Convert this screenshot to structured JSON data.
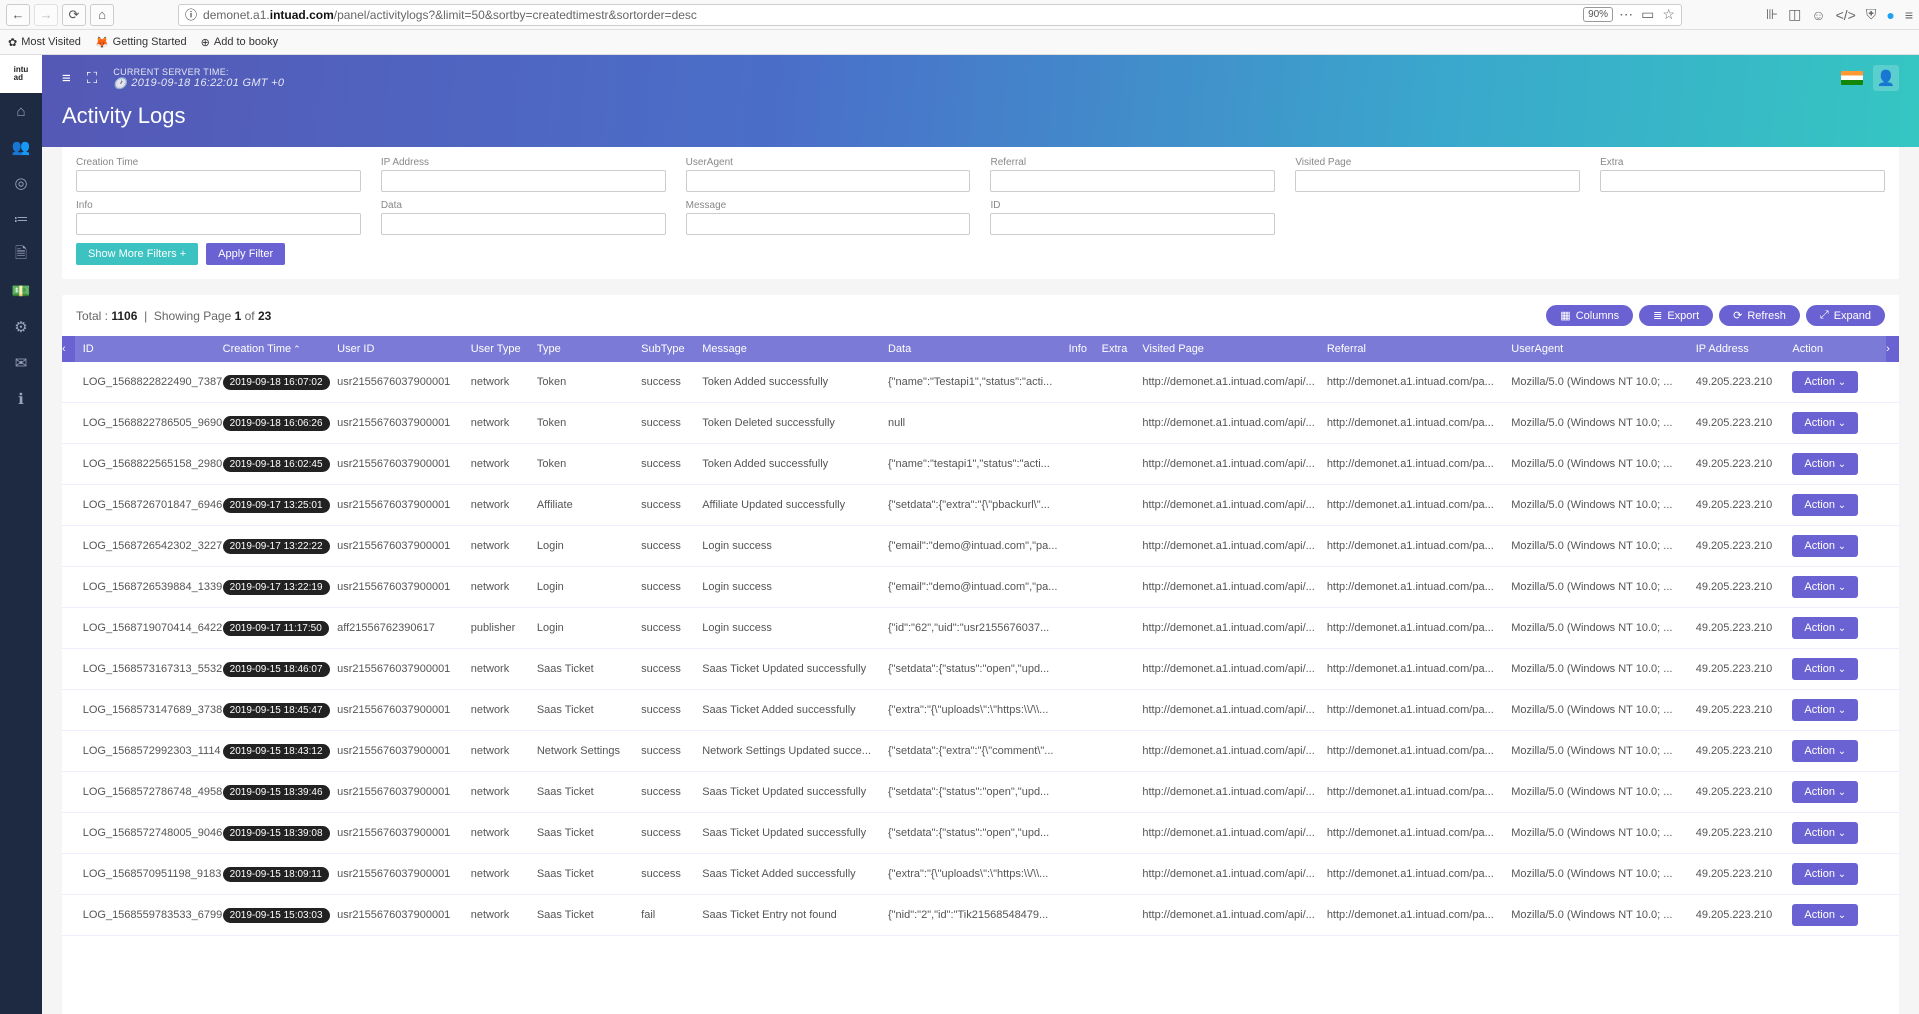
{
  "browser": {
    "url_prefix": "demonet.a1.",
    "url_host": "intuad.com",
    "url_path": "/panel/activitylogs?&limit=50&sortby=createdtimestr&sortorder=desc",
    "zoom": "90%",
    "bookmarks": [
      "Most Visited",
      "Getting Started",
      "Add to booky"
    ]
  },
  "header": {
    "server_time_label": "CURRENT SERVER TIME:",
    "server_time_value": "2019-09-18 16:22:01 GMT +0",
    "page_title": "Activity Logs"
  },
  "filters": {
    "row1": [
      "Creation Time",
      "IP Address",
      "UserAgent",
      "Referral",
      "Visited Page",
      "Extra"
    ],
    "row2": [
      "Info",
      "Data",
      "Message",
      "ID",
      "",
      ""
    ],
    "show_more": "Show More Filters +",
    "apply": "Apply Filter"
  },
  "table": {
    "total_label": "Total :",
    "total": "1106",
    "page_label_pre": "Showing Page ",
    "page_current": "1",
    "page_of": " of ",
    "page_total": "23",
    "btn_columns": "Columns",
    "btn_export": "Export",
    "btn_refresh": "Refresh",
    "btn_expand": "Expand",
    "action_label": "Action",
    "columns": [
      "ID",
      "Creation Time",
      "User ID",
      "User Type",
      "Type",
      "SubType",
      "Message",
      "Data",
      "Info",
      "Extra",
      "Visited Page",
      "Referral",
      "UserAgent",
      "IP Address",
      "Action"
    ],
    "rows": [
      {
        "id": "LOG_1568822822490_7387",
        "ct": "2019-09-18 16:07:02",
        "uid": "usr2155676037900001",
        "ut": "network",
        "type": "Token",
        "sub": "success",
        "msg": "Token Added successfully",
        "data": "{\"name\":\"Testapi1\",\"status\":\"acti...",
        "vp": "http://demonet.a1.intuad.com/api/...",
        "ref": "http://demonet.a1.intuad.com/pa...",
        "ua": "Mozilla/5.0 (Windows NT 10.0; ...",
        "ip": "49.205.223.210"
      },
      {
        "id": "LOG_1568822786505_9690",
        "ct": "2019-09-18 16:06:26",
        "uid": "usr2155676037900001",
        "ut": "network",
        "type": "Token",
        "sub": "success",
        "msg": "Token Deleted successfully",
        "data": "null",
        "vp": "http://demonet.a1.intuad.com/api/...",
        "ref": "http://demonet.a1.intuad.com/pa...",
        "ua": "Mozilla/5.0 (Windows NT 10.0; ...",
        "ip": "49.205.223.210"
      },
      {
        "id": "LOG_1568822565158_2980",
        "ct": "2019-09-18 16:02:45",
        "uid": "usr2155676037900001",
        "ut": "network",
        "type": "Token",
        "sub": "success",
        "msg": "Token Added successfully",
        "data": "{\"name\":\"testapi1\",\"status\":\"acti...",
        "vp": "http://demonet.a1.intuad.com/api/...",
        "ref": "http://demonet.a1.intuad.com/pa...",
        "ua": "Mozilla/5.0 (Windows NT 10.0; ...",
        "ip": "49.205.223.210"
      },
      {
        "id": "LOG_1568726701847_6946",
        "ct": "2019-09-17 13:25:01",
        "uid": "usr2155676037900001",
        "ut": "network",
        "type": "Affiliate",
        "sub": "success",
        "msg": "Affiliate Updated successfully",
        "data": "{\"setdata\":{\"extra\":\"{\\\"pbackurl\\\"...",
        "vp": "http://demonet.a1.intuad.com/api/...",
        "ref": "http://demonet.a1.intuad.com/pa...",
        "ua": "Mozilla/5.0 (Windows NT 10.0; ...",
        "ip": "49.205.223.210"
      },
      {
        "id": "LOG_1568726542302_3227",
        "ct": "2019-09-17 13:22:22",
        "uid": "usr2155676037900001",
        "ut": "network",
        "type": "Login",
        "sub": "success",
        "msg": "Login success",
        "data": "{\"email\":\"demo@intuad.com\",\"pa...",
        "vp": "http://demonet.a1.intuad.com/api/...",
        "ref": "http://demonet.a1.intuad.com/pa...",
        "ua": "Mozilla/5.0 (Windows NT 10.0; ...",
        "ip": "49.205.223.210"
      },
      {
        "id": "LOG_1568726539884_1339",
        "ct": "2019-09-17 13:22:19",
        "uid": "usr2155676037900001",
        "ut": "network",
        "type": "Login",
        "sub": "success",
        "msg": "Login success",
        "data": "{\"email\":\"demo@intuad.com\",\"pa...",
        "vp": "http://demonet.a1.intuad.com/api/...",
        "ref": "http://demonet.a1.intuad.com/pa...",
        "ua": "Mozilla/5.0 (Windows NT 10.0; ...",
        "ip": "49.205.223.210"
      },
      {
        "id": "LOG_1568719070414_6422",
        "ct": "2019-09-17 11:17:50",
        "uid": "aff21556762390617",
        "ut": "publisher",
        "type": "Login",
        "sub": "success",
        "msg": "Login success",
        "data": "{\"id\":\"62\",\"uid\":\"usr2155676037...",
        "vp": "http://demonet.a1.intuad.com/api/...",
        "ref": "http://demonet.a1.intuad.com/pa...",
        "ua": "Mozilla/5.0 (Windows NT 10.0; ...",
        "ip": "49.205.223.210"
      },
      {
        "id": "LOG_1568573167313_5532",
        "ct": "2019-09-15 18:46:07",
        "uid": "usr2155676037900001",
        "ut": "network",
        "type": "Saas Ticket",
        "sub": "success",
        "msg": "Saas Ticket Updated successfully",
        "data": "{\"setdata\":{\"status\":\"open\",\"upd...",
        "vp": "http://demonet.a1.intuad.com/api/...",
        "ref": "http://demonet.a1.intuad.com/pa...",
        "ua": "Mozilla/5.0 (Windows NT 10.0; ...",
        "ip": "49.205.223.210"
      },
      {
        "id": "LOG_1568573147689_3738",
        "ct": "2019-09-15 18:45:47",
        "uid": "usr2155676037900001",
        "ut": "network",
        "type": "Saas Ticket",
        "sub": "success",
        "msg": "Saas Ticket Added successfully",
        "data": "{\"extra\":\"{\\\"uploads\\\":\\\"https:\\\\/\\\\...",
        "vp": "http://demonet.a1.intuad.com/api/...",
        "ref": "http://demonet.a1.intuad.com/pa...",
        "ua": "Mozilla/5.0 (Windows NT 10.0; ...",
        "ip": "49.205.223.210"
      },
      {
        "id": "LOG_1568572992303_1114",
        "ct": "2019-09-15 18:43:12",
        "uid": "usr2155676037900001",
        "ut": "network",
        "type": "Network Settings",
        "sub": "success",
        "msg": "Network Settings Updated succe...",
        "data": "{\"setdata\":{\"extra\":\"{\\\"comment\\\"...",
        "vp": "http://demonet.a1.intuad.com/api/...",
        "ref": "http://demonet.a1.intuad.com/pa...",
        "ua": "Mozilla/5.0 (Windows NT 10.0; ...",
        "ip": "49.205.223.210"
      },
      {
        "id": "LOG_1568572786748_4958",
        "ct": "2019-09-15 18:39:46",
        "uid": "usr2155676037900001",
        "ut": "network",
        "type": "Saas Ticket",
        "sub": "success",
        "msg": "Saas Ticket Updated successfully",
        "data": "{\"setdata\":{\"status\":\"open\",\"upd...",
        "vp": "http://demonet.a1.intuad.com/api/...",
        "ref": "http://demonet.a1.intuad.com/pa...",
        "ua": "Mozilla/5.0 (Windows NT 10.0; ...",
        "ip": "49.205.223.210"
      },
      {
        "id": "LOG_1568572748005_9046",
        "ct": "2019-09-15 18:39:08",
        "uid": "usr2155676037900001",
        "ut": "network",
        "type": "Saas Ticket",
        "sub": "success",
        "msg": "Saas Ticket Updated successfully",
        "data": "{\"setdata\":{\"status\":\"open\",\"upd...",
        "vp": "http://demonet.a1.intuad.com/api/...",
        "ref": "http://demonet.a1.intuad.com/pa...",
        "ua": "Mozilla/5.0 (Windows NT 10.0; ...",
        "ip": "49.205.223.210"
      },
      {
        "id": "LOG_1568570951198_9183",
        "ct": "2019-09-15 18:09:11",
        "uid": "usr2155676037900001",
        "ut": "network",
        "type": "Saas Ticket",
        "sub": "success",
        "msg": "Saas Ticket Added successfully",
        "data": "{\"extra\":\"{\\\"uploads\\\":\\\"https:\\\\/\\\\...",
        "vp": "http://demonet.a1.intuad.com/api/...",
        "ref": "http://demonet.a1.intuad.com/pa...",
        "ua": "Mozilla/5.0 (Windows NT 10.0; ...",
        "ip": "49.205.223.210"
      },
      {
        "id": "LOG_1568559783533_6799",
        "ct": "2019-09-15 15:03:03",
        "uid": "usr2155676037900001",
        "ut": "network",
        "type": "Saas Ticket",
        "sub": "fail",
        "msg": "Saas Ticket Entry not found",
        "data": "{\"nid\":\"2\",\"id\":\"Tik21568548479...",
        "vp": "http://demonet.a1.intuad.com/api/...",
        "ref": "http://demonet.a1.intuad.com/pa...",
        "ua": "Mozilla/5.0 (Windows NT 10.0; ...",
        "ip": "49.205.223.210"
      }
    ]
  }
}
